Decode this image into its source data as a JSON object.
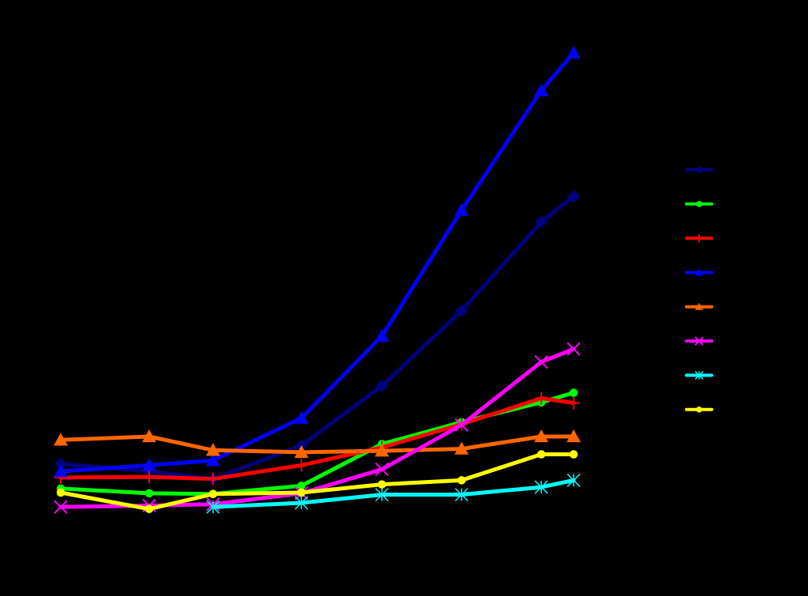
{
  "chart_data": {
    "type": "line",
    "x": [
      1,
      2,
      3,
      4,
      5,
      6,
      7,
      7.4
    ],
    "x_range": [
      0.6,
      7.8
    ],
    "y_range": [
      0,
      100
    ],
    "grid": false,
    "legend_placement": "right",
    "background": "#000000",
    "series": [
      {
        "marker": "diamond",
        "color": "#000080",
        "values": [
          7.2,
          6.1,
          5.0,
          9.9,
          18.6,
          29.6,
          42.6,
          46.3
        ]
      },
      {
        "marker": "circle",
        "color": "#00FF00",
        "values": [
          3.6,
          2.9,
          2.8,
          4.0,
          10.1,
          13.3,
          16.2,
          17.6
        ]
      },
      {
        "marker": "plus",
        "color": "#FF0000",
        "values": [
          5.2,
          5.3,
          5.0,
          7.0,
          9.6,
          13.0,
          16.8,
          16.1
        ]
      },
      {
        "marker": "triangle",
        "color": "#0000FF",
        "values": [
          6.1,
          7.0,
          7.7,
          13.9,
          25.9,
          44.3,
          61.8,
          67.3
        ]
      },
      {
        "marker": "triangle",
        "color": "#FF6600",
        "values": [
          10.7,
          11.2,
          9.2,
          8.9,
          9.1,
          9.4,
          11.2,
          11.2
        ]
      },
      {
        "marker": "x",
        "color": "#FF00FF",
        "values": [
          0.9,
          1.1,
          1.3,
          2.9,
          6.4,
          12.9,
          22.1,
          24.0
        ]
      },
      {
        "marker": "star",
        "color": "#00FFFF",
        "values": null,
        "values_from": 2,
        "values_tail": [
          0.9,
          1.5,
          2.7,
          2.7,
          3.8,
          4.8
        ]
      },
      {
        "marker": "circle",
        "color": "#FFFF00",
        "values": [
          3.0,
          0.6,
          2.8,
          3.0,
          4.2,
          4.8,
          8.6,
          8.6
        ]
      }
    ]
  }
}
